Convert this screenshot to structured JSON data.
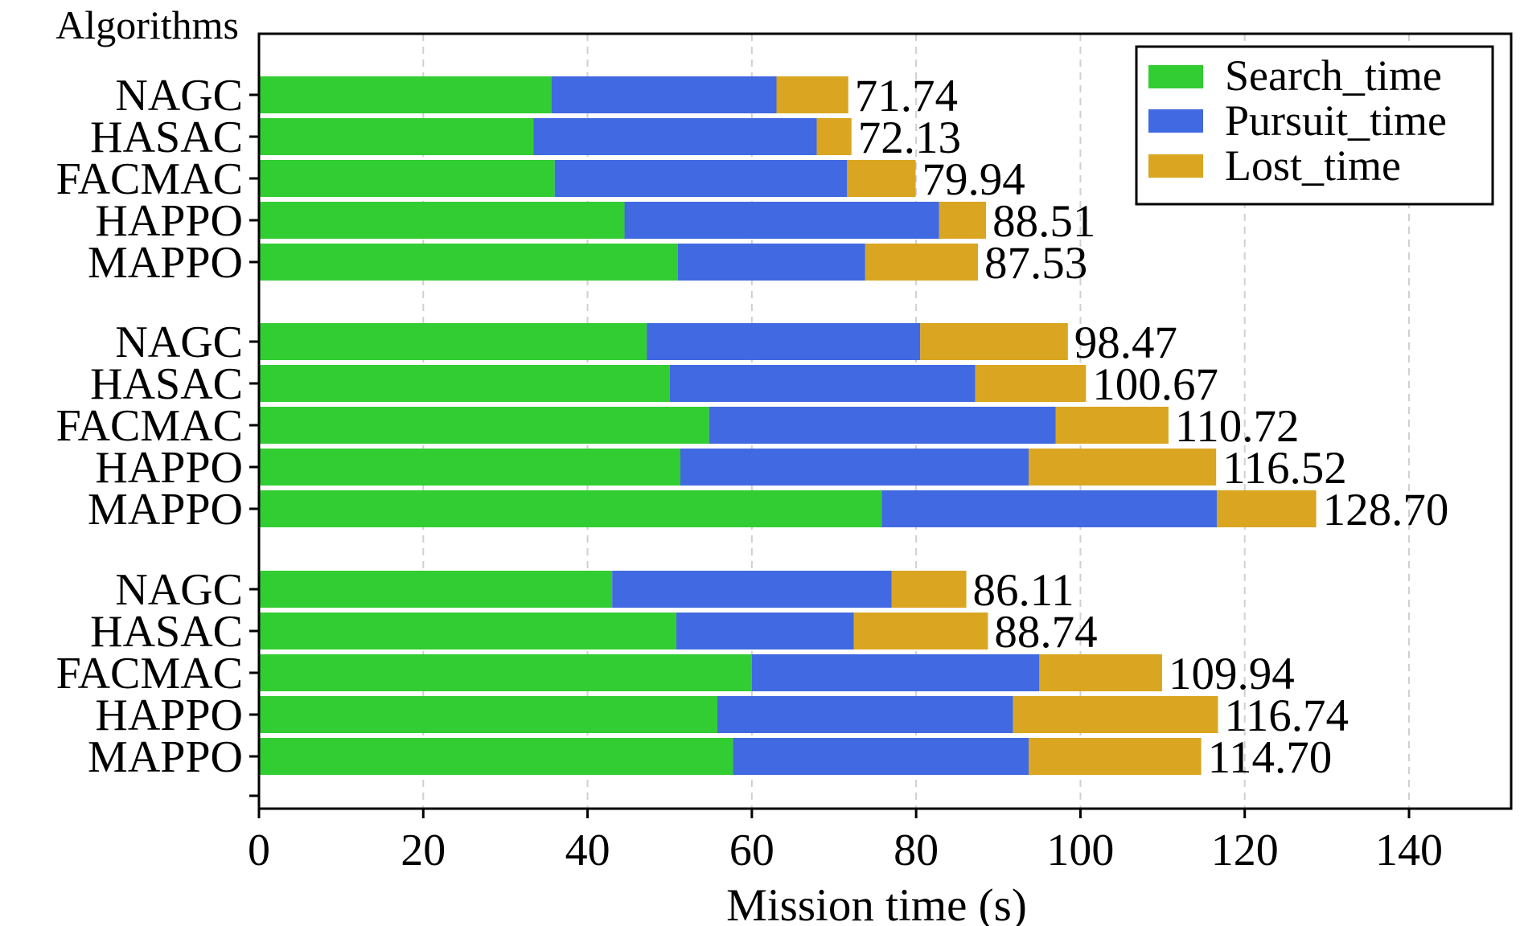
{
  "chart_data": {
    "type": "bar",
    "orientation": "horizontal",
    "stacked": true,
    "title": "",
    "ylabel": "Algorithms",
    "xlabel": "Mission time (s)",
    "xlim": [
      0,
      150
    ],
    "xticks": [
      0,
      20,
      40,
      60,
      80,
      100,
      120,
      140
    ],
    "grid": "vertical dashed",
    "legend_position": "top-right",
    "colors": {
      "Search_time": "#32CD32",
      "Pursuit_time": "#4169E1",
      "Lost_time": "#DAA520"
    },
    "series_names": [
      "Search_time",
      "Pursuit_time",
      "Lost_time"
    ],
    "groups": [
      {
        "bars": [
          {
            "label": "NAGC",
            "search": 35.6,
            "pursuit": 27.4,
            "lost": 8.74,
            "total_label": "71.74"
          },
          {
            "label": "HASAC",
            "search": 33.4,
            "pursuit": 34.5,
            "lost": 4.23,
            "total_label": "72.13"
          },
          {
            "label": "FACMAC",
            "search": 36.0,
            "pursuit": 35.6,
            "lost": 8.34,
            "total_label": "79.94"
          },
          {
            "label": "HAPPO",
            "search": 44.5,
            "pursuit": 38.3,
            "lost": 5.71,
            "total_label": "88.51"
          },
          {
            "label": "MAPPO",
            "search": 51.0,
            "pursuit": 22.8,
            "lost": 13.73,
            "total_label": "87.53"
          }
        ]
      },
      {
        "bars": [
          {
            "label": "NAGC",
            "search": 47.2,
            "pursuit": 33.3,
            "lost": 17.97,
            "total_label": "98.47"
          },
          {
            "label": "HASAC",
            "search": 50.0,
            "pursuit": 37.2,
            "lost": 13.47,
            "total_label": "100.67"
          },
          {
            "label": "FACMAC",
            "search": 54.8,
            "pursuit": 42.2,
            "lost": 13.72,
            "total_label": "110.72"
          },
          {
            "label": "HAPPO",
            "search": 51.3,
            "pursuit": 42.4,
            "lost": 22.82,
            "total_label": "116.52"
          },
          {
            "label": "MAPPO",
            "search": 75.8,
            "pursuit": 40.8,
            "lost": 12.1,
            "total_label": "128.70"
          }
        ]
      },
      {
        "bars": [
          {
            "label": "NAGC",
            "search": 43.0,
            "pursuit": 34.0,
            "lost": 9.11,
            "total_label": "86.11"
          },
          {
            "label": "HASAC",
            "search": 50.8,
            "pursuit": 21.6,
            "lost": 16.34,
            "total_label": "88.74"
          },
          {
            "label": "FACMAC",
            "search": 60.0,
            "pursuit": 35.0,
            "lost": 14.94,
            "total_label": "109.94"
          },
          {
            "label": "HAPPO",
            "search": 55.8,
            "pursuit": 36.0,
            "lost": 24.94,
            "total_label": "116.74"
          },
          {
            "label": "MAPPO",
            "search": 57.7,
            "pursuit": 36.0,
            "lost": 21.0,
            "total_label": "114.70"
          }
        ]
      }
    ]
  }
}
